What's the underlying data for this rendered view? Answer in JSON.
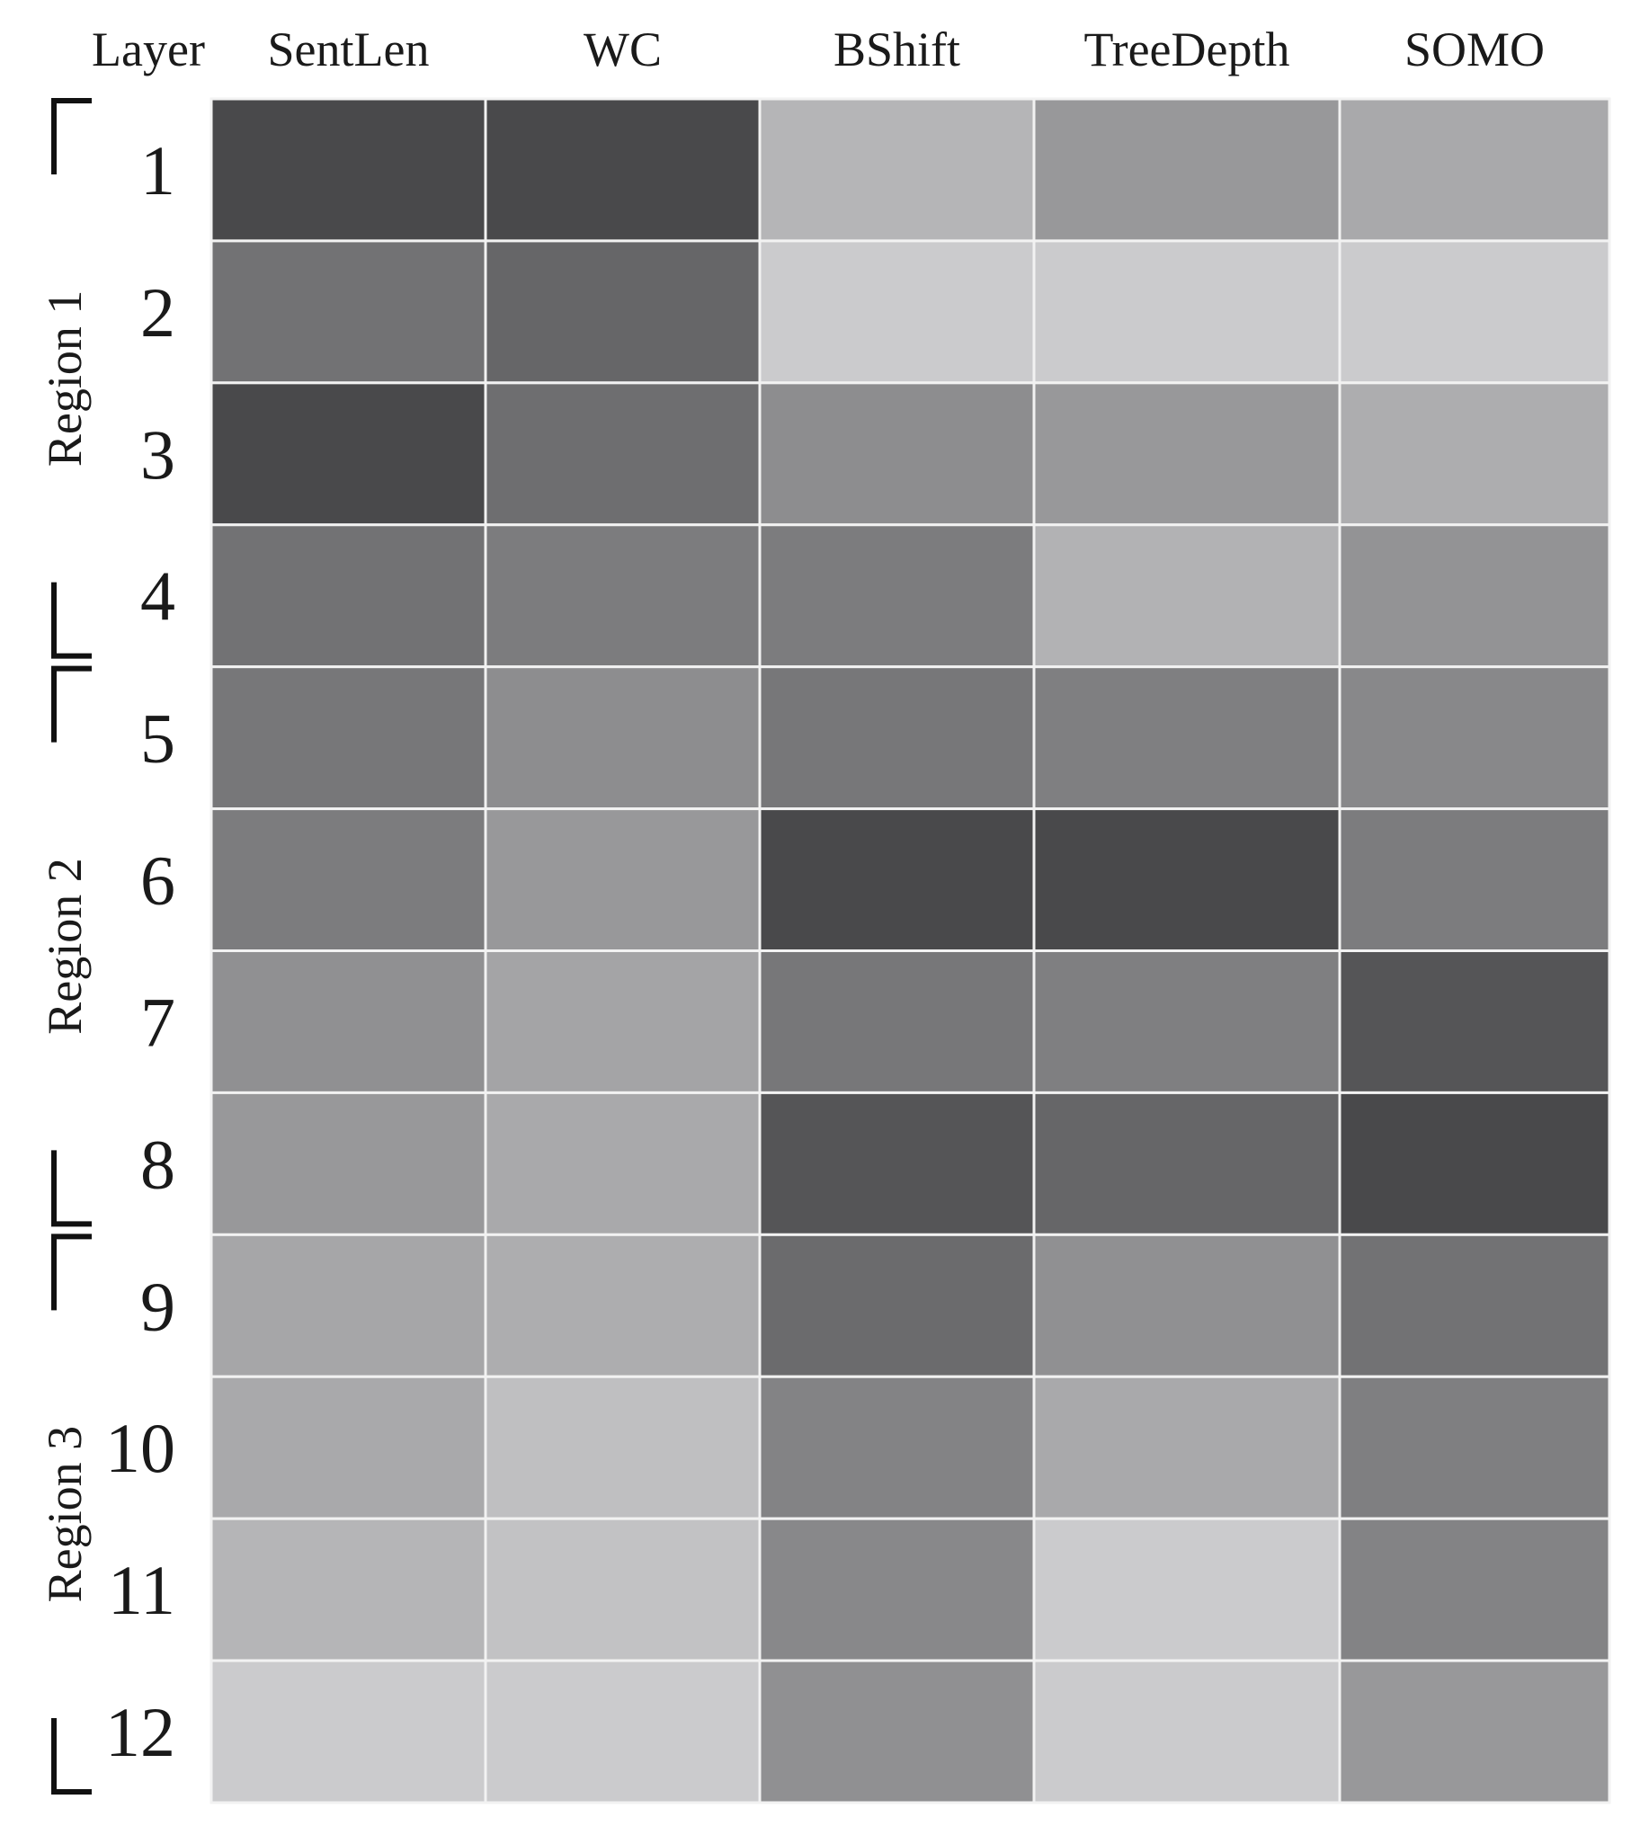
{
  "chart_data": {
    "type": "heatmap",
    "corner_label": "Layer",
    "columns": [
      "SentLen",
      "WC",
      "BShift",
      "TreeDepth",
      "SOMO"
    ],
    "rows": [
      "1",
      "2",
      "3",
      "4",
      "5",
      "6",
      "7",
      "8",
      "9",
      "10",
      "11",
      "12"
    ],
    "values": [
      [
        0.92,
        0.92,
        0.28,
        0.45,
        0.35
      ],
      [
        0.68,
        0.75,
        0.15,
        0.15,
        0.15
      ],
      [
        0.92,
        0.7,
        0.52,
        0.45,
        0.33
      ],
      [
        0.68,
        0.62,
        0.62,
        0.3,
        0.48
      ],
      [
        0.65,
        0.52,
        0.65,
        0.6,
        0.55
      ],
      [
        0.62,
        0.45,
        0.92,
        0.92,
        0.62
      ],
      [
        0.5,
        0.38,
        0.65,
        0.6,
        0.85
      ],
      [
        0.45,
        0.35,
        0.85,
        0.75,
        0.92
      ],
      [
        0.37,
        0.33,
        0.72,
        0.5,
        0.68
      ],
      [
        0.35,
        0.22,
        0.58,
        0.35,
        0.6
      ],
      [
        0.28,
        0.2,
        0.55,
        0.15,
        0.58
      ],
      [
        0.15,
        0.15,
        0.5,
        0.15,
        0.45
      ]
    ],
    "regions": [
      {
        "label": "Region 1",
        "rows": [
          1,
          4
        ]
      },
      {
        "label": "Region 2",
        "rows": [
          5,
          8
        ]
      },
      {
        "label": "Region 3",
        "rows": [
          9,
          12
        ]
      }
    ],
    "colors": {
      "light": "#e4e4e6",
      "dark": "#3c3c3e",
      "cell_border": "#f2f2f2",
      "bracket": "#111111"
    }
  }
}
